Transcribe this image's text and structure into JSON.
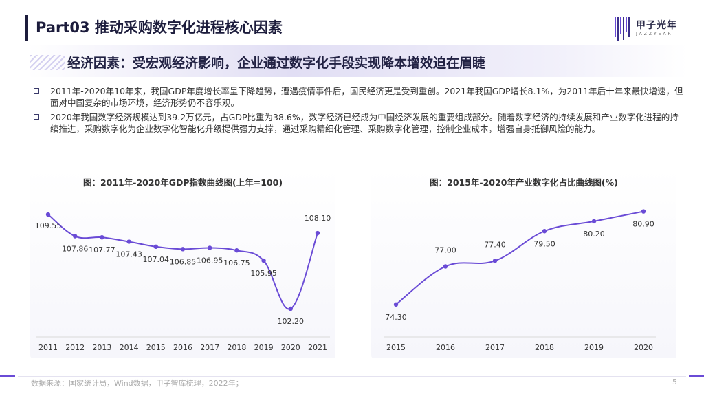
{
  "header": {
    "title": "Part03 推动采购数字化进程核心因素",
    "logo_text": "甲子光年",
    "logo_sub": "JAZZYEAR"
  },
  "subtitle": "经济因素：受宏观经济影响，企业通过数字化手段实现降本增效迫在眉睫",
  "bullets": [
    "2011年-2020年10年来，我国GDP年度增长率呈下降趋势，遭遇疫情事件后，国民经济更是受到重创。2021年我国GDP增长8.1%，为2011年后十年来最快增速，但面对中国复杂的市场环境，经济形势仍不容乐观。",
    "2020年我国数字经济规模达到39.2万亿元，占GDP比重为38.6%，数字经济已经成为中国经济发展的重要组成部分。随着数字经济的持续发展和产业数字化进程的持续推进，采购数字化为企业数字化智能化升级提供强力支撑，通过采购精细化管理、采购数字化管理，控制企业成本，增强自身抵御风险的能力。"
  ],
  "footer": {
    "source": "数据来源：国家统计局，Wind数据，甲子智库梳理，2022年；",
    "page": "5"
  },
  "colors": {
    "accent": "#6a4bd6",
    "line": "#6a4bd6",
    "title_bar": "#1c1c3c"
  },
  "chart_data": [
    {
      "type": "line",
      "title": "图：2011年-2020年GDP指数曲线图(上年=100)",
      "categories": [
        "2011",
        "2012",
        "2013",
        "2014",
        "2015",
        "2016",
        "2017",
        "2018",
        "2019",
        "2020",
        "2021"
      ],
      "values": [
        109.55,
        107.86,
        107.77,
        107.43,
        107.04,
        106.85,
        106.95,
        106.75,
        105.95,
        102.2,
        108.1
      ],
      "labels": [
        "109.55",
        "107.86",
        "107.77",
        "107.43",
        "107.04",
        "106.85",
        "106.95",
        "106.75",
        "105.95",
        "102.20",
        "108.10"
      ],
      "ylim": [
        100,
        111
      ],
      "xlabel": "",
      "ylabel": ""
    },
    {
      "type": "line",
      "title": "图：2015年-2020年产业数字化占比曲线图(%)",
      "categories": [
        "2015",
        "2016",
        "2017",
        "2018",
        "2019",
        "2020"
      ],
      "values": [
        74.3,
        77.0,
        77.4,
        79.5,
        80.2,
        80.9
      ],
      "labels": [
        "74.30",
        "77.00",
        "77.40",
        "79.50",
        "80.20",
        "80.90"
      ],
      "ylim": [
        72,
        82
      ],
      "xlabel": "",
      "ylabel": ""
    }
  ]
}
